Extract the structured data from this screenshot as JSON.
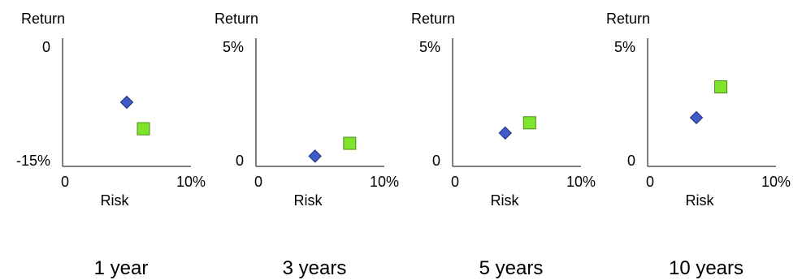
{
  "colors": {
    "diamond_fill": "#3F5BC8",
    "diamond_stroke": "#1E2E7A",
    "square_fill": "#7FE52C",
    "square_stroke": "#4C8C1A",
    "axis": "#000000"
  },
  "chart_data": [
    {
      "type": "scatter",
      "title": "1 year",
      "xlabel": "Risk",
      "ylabel": "Return",
      "xlim": [
        0,
        10
      ],
      "ylim": [
        -15,
        0
      ],
      "x_tick_labels": [
        "0",
        "10%"
      ],
      "y_tick_labels": [
        "-15%",
        "0"
      ],
      "grid": false,
      "series": [
        {
          "marker": "diamond",
          "points": [
            {
              "x": 5.0,
              "y": -7.5
            }
          ]
        },
        {
          "marker": "square",
          "points": [
            {
              "x": 6.3,
              "y": -10.6
            }
          ]
        }
      ]
    },
    {
      "type": "scatter",
      "title": "3 years",
      "xlabel": "Risk",
      "ylabel": "Return",
      "xlim": [
        0,
        10
      ],
      "ylim": [
        0,
        5
      ],
      "x_tick_labels": [
        "0",
        "10%"
      ],
      "y_tick_labels": [
        "0",
        "5%"
      ],
      "grid": false,
      "series": [
        {
          "marker": "diamond",
          "points": [
            {
              "x": 4.6,
              "y": 0.4
            }
          ]
        },
        {
          "marker": "square",
          "points": [
            {
              "x": 7.3,
              "y": 0.9
            }
          ]
        }
      ]
    },
    {
      "type": "scatter",
      "title": "5 years",
      "xlabel": "Risk",
      "ylabel": "Return",
      "xlim": [
        0,
        10
      ],
      "ylim": [
        0,
        5
      ],
      "x_tick_labels": [
        "0",
        "10%"
      ],
      "y_tick_labels": [
        "0",
        "5%"
      ],
      "grid": false,
      "series": [
        {
          "marker": "diamond",
          "points": [
            {
              "x": 4.1,
              "y": 1.3
            }
          ]
        },
        {
          "marker": "square",
          "points": [
            {
              "x": 6.0,
              "y": 1.7
            }
          ]
        }
      ]
    },
    {
      "type": "scatter",
      "title": "10 years",
      "xlabel": "Risk",
      "ylabel": "Return",
      "xlim": [
        0,
        10
      ],
      "ylim": [
        0,
        5
      ],
      "x_tick_labels": [
        "0",
        "10%"
      ],
      "y_tick_labels": [
        "0",
        "5%"
      ],
      "grid": false,
      "series": [
        {
          "marker": "diamond",
          "points": [
            {
              "x": 3.8,
              "y": 1.9
            }
          ]
        },
        {
          "marker": "square",
          "points": [
            {
              "x": 5.7,
              "y": 3.1
            }
          ]
        }
      ]
    }
  ]
}
